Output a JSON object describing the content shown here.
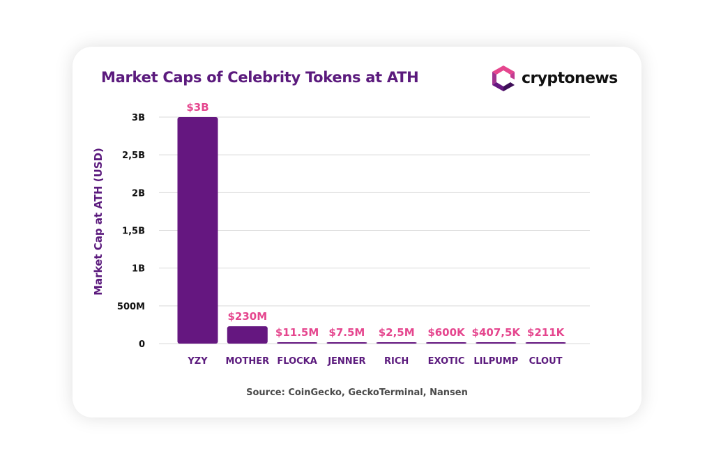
{
  "brand": {
    "name": "cryptonews",
    "logo_icon": "cryptonews-cube-logo"
  },
  "colors": {
    "bar": "#651780",
    "value_label": "#e5468e",
    "title": "#5b1a7d",
    "axis_label": "#5b1a7d",
    "grid": "#d9d9d9",
    "text": "#111111"
  },
  "source": "Source: CoinGecko, GeckoTerminal, Nansen",
  "chart_data": {
    "type": "bar",
    "title": "Market Caps of Celebrity Tokens at ATH",
    "xlabel": "",
    "ylabel": "Market Cap at ATH (USD)",
    "categories": [
      "YZY",
      "MOTHER",
      "FLOCKA",
      "JENNER",
      "RICH",
      "EXOTIC",
      "LILPUMP",
      "CLOUT"
    ],
    "values": [
      3000000000,
      230000000,
      11500000,
      7500000,
      2500000,
      600000,
      407500,
      211000
    ],
    "value_labels": [
      "$3B",
      "$230M",
      "$11.5M",
      "$7.5M",
      "$2,5M",
      "$600K",
      "$407,5K",
      "$211K"
    ],
    "yticks": [
      0,
      500000000,
      1000000000,
      1500000000,
      2000000000,
      2500000000,
      3000000000
    ],
    "ytick_labels": [
      "0",
      "500M",
      "1B",
      "1,5B",
      "2B",
      "2,5B",
      "3B"
    ],
    "ylim": [
      0,
      3000000000
    ],
    "grid": true,
    "legend": "none"
  }
}
